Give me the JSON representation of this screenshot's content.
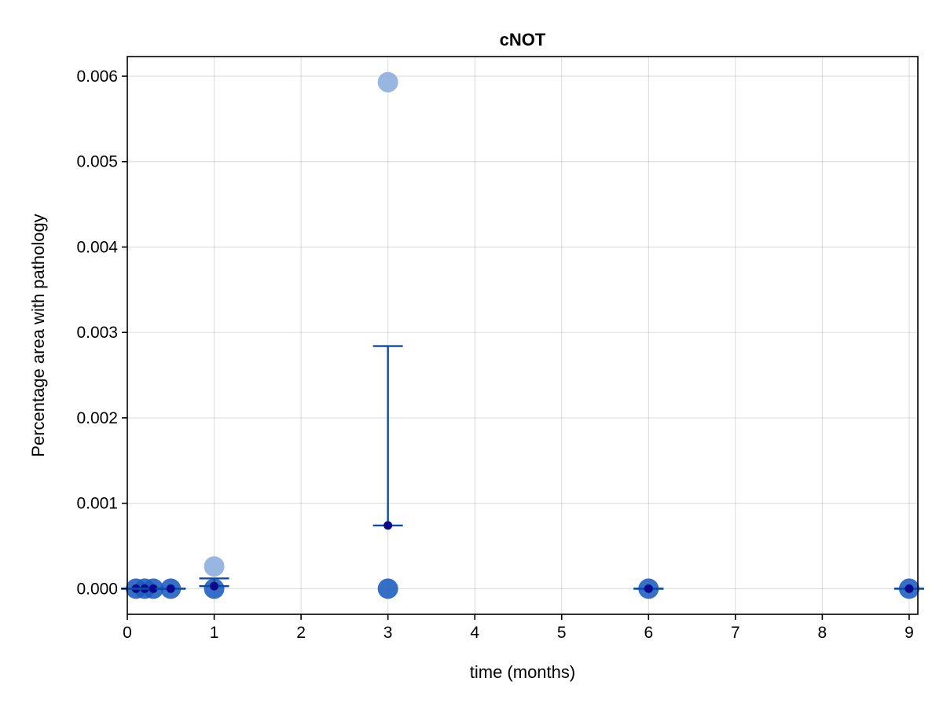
{
  "chart_data": {
    "type": "scatter",
    "title": "cNOT",
    "xlabel": "time (months)",
    "ylabel": "Percentage area with pathology",
    "xlim": [
      0,
      9.1
    ],
    "ylim": [
      -0.0003,
      0.00623
    ],
    "xticks": [
      0,
      1,
      2,
      3,
      4,
      5,
      6,
      7,
      8,
      9
    ],
    "yticks": [
      0.0,
      0.001,
      0.002,
      0.003,
      0.004,
      0.005,
      0.006
    ],
    "ytick_labels": [
      "0.000",
      "0.001",
      "0.002",
      "0.003",
      "0.004",
      "0.005",
      "0.006"
    ],
    "grid": true,
    "legend": "none",
    "colors": {
      "points": "#1a5bbf",
      "points_faint": "#8eaede",
      "error_bar": "#0e4ba8",
      "mean": "#0a0a8a"
    },
    "points": [
      {
        "x": 0.1,
        "y": 0.0,
        "faint": false
      },
      {
        "x": 0.2,
        "y": 0.0,
        "faint": false
      },
      {
        "x": 0.3,
        "y": 0.0,
        "faint": false
      },
      {
        "x": 0.5,
        "y": 0.0,
        "faint": false
      },
      {
        "x": 1.0,
        "y": 0.0,
        "faint": false
      },
      {
        "x": 1.0,
        "y": 0.00026,
        "faint": true
      },
      {
        "x": 3.0,
        "y": 0.0,
        "faint": false
      },
      {
        "x": 3.0,
        "y": 0.00593,
        "faint": true
      },
      {
        "x": 6.0,
        "y": 0.0,
        "faint": false
      },
      {
        "x": 9.0,
        "y": 0.0,
        "faint": false
      }
    ],
    "summary": [
      {
        "x": 0.1,
        "mean": 0.0,
        "lower": 0.0,
        "upper": 0.0
      },
      {
        "x": 0.2,
        "mean": 0.0,
        "lower": 0.0,
        "upper": 0.0
      },
      {
        "x": 0.3,
        "mean": 0.0,
        "lower": 0.0,
        "upper": 0.0
      },
      {
        "x": 0.5,
        "mean": 0.0,
        "lower": 0.0,
        "upper": 0.0
      },
      {
        "x": 1.0,
        "mean": 3e-05,
        "lower": 3e-05,
        "upper": 0.00012
      },
      {
        "x": 3.0,
        "mean": 0.00074,
        "lower": 0.00074,
        "upper": 0.00284
      },
      {
        "x": 6.0,
        "mean": 0.0,
        "lower": 0.0,
        "upper": 0.0
      },
      {
        "x": 9.0,
        "mean": 0.0,
        "lower": 0.0,
        "upper": 0.0
      }
    ]
  }
}
